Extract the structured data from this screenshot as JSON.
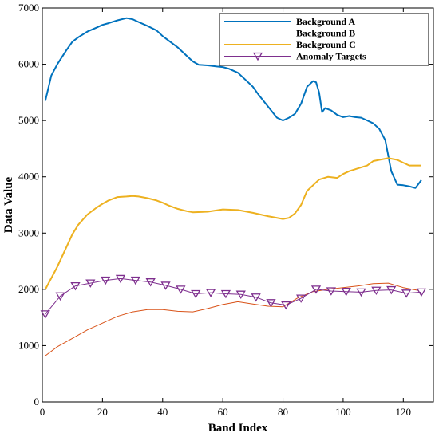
{
  "chart_data": {
    "type": "line",
    "title": "",
    "xlabel": "Band Index",
    "ylabel": "Data Value",
    "xlim": [
      0,
      130
    ],
    "ylim": [
      0,
      7000
    ],
    "xticks": [
      0,
      20,
      40,
      60,
      80,
      100,
      120
    ],
    "yticks": [
      0,
      1000,
      2000,
      3000,
      4000,
      5000,
      6000,
      7000
    ],
    "grid": false,
    "legend_position": "top-right",
    "series": [
      {
        "name": "Background A",
        "color": "#0072BD",
        "marker": "none",
        "x": [
          1,
          3,
          5,
          8,
          10,
          12,
          15,
          18,
          20,
          22,
          25,
          28,
          30,
          32,
          35,
          38,
          40,
          42,
          45,
          48,
          50,
          52,
          55,
          58,
          60,
          62,
          65,
          68,
          70,
          72,
          75,
          78,
          80,
          82,
          84,
          86,
          88,
          90,
          91,
          92,
          93,
          94,
          96,
          98,
          100,
          102,
          104,
          106,
          108,
          110,
          112,
          114,
          116,
          118,
          120,
          122,
          124,
          126
        ],
        "y": [
          5350,
          5800,
          6000,
          6250,
          6400,
          6480,
          6580,
          6650,
          6700,
          6730,
          6780,
          6820,
          6800,
          6750,
          6680,
          6600,
          6500,
          6420,
          6300,
          6150,
          6050,
          5990,
          5980,
          5960,
          5950,
          5920,
          5850,
          5700,
          5600,
          5450,
          5250,
          5050,
          5000,
          5050,
          5120,
          5300,
          5600,
          5700,
          5680,
          5500,
          5150,
          5220,
          5180,
          5100,
          5060,
          5080,
          5060,
          5050,
          5000,
          4950,
          4850,
          4650,
          4100,
          3860,
          3850,
          3830,
          3800,
          3940
        ]
      },
      {
        "name": "Background B",
        "color": "#D95319",
        "marker": "none",
        "x": [
          1,
          5,
          10,
          15,
          20,
          25,
          30,
          35,
          40,
          45,
          50,
          55,
          60,
          65,
          70,
          75,
          80,
          85,
          90,
          95,
          100,
          105,
          110,
          115,
          120,
          125
        ],
        "y": [
          820,
          980,
          1130,
          1280,
          1400,
          1520,
          1600,
          1640,
          1640,
          1610,
          1600,
          1660,
          1730,
          1780,
          1740,
          1700,
          1690,
          1850,
          1960,
          2000,
          2030,
          2060,
          2100,
          2110,
          2030,
          1980
        ]
      },
      {
        "name": "Background C",
        "color": "#EDB120",
        "marker": "none",
        "x": [
          1,
          5,
          8,
          10,
          12,
          15,
          18,
          20,
          22,
          25,
          28,
          30,
          32,
          35,
          38,
          40,
          42,
          45,
          48,
          50,
          55,
          60,
          65,
          70,
          75,
          80,
          82,
          84,
          86,
          88,
          90,
          92,
          95,
          98,
          100,
          102,
          105,
          108,
          110,
          112,
          115,
          118,
          120,
          122,
          126
        ],
        "y": [
          2000,
          2400,
          2750,
          2980,
          3150,
          3330,
          3450,
          3520,
          3580,
          3640,
          3650,
          3660,
          3650,
          3620,
          3580,
          3540,
          3490,
          3430,
          3390,
          3370,
          3380,
          3420,
          3410,
          3360,
          3300,
          3250,
          3270,
          3350,
          3500,
          3750,
          3850,
          3950,
          4000,
          3980,
          4050,
          4100,
          4150,
          4200,
          4280,
          4300,
          4330,
          4300,
          4250,
          4200,
          4200
        ]
      },
      {
        "name": "Anomaly Targets",
        "color": "#7E2F8E",
        "marker": "triangle-down",
        "x": [
          1,
          6,
          11,
          16,
          21,
          26,
          31,
          36,
          41,
          46,
          51,
          56,
          61,
          66,
          71,
          76,
          81,
          86,
          91,
          96,
          101,
          106,
          111,
          116,
          121,
          126
        ],
        "y": [
          1560,
          1880,
          2060,
          2110,
          2160,
          2190,
          2160,
          2130,
          2070,
          2000,
          1920,
          1940,
          1920,
          1910,
          1860,
          1760,
          1720,
          1840,
          2000,
          1970,
          1960,
          1950,
          1980,
          1990,
          1930,
          1950
        ]
      }
    ]
  }
}
